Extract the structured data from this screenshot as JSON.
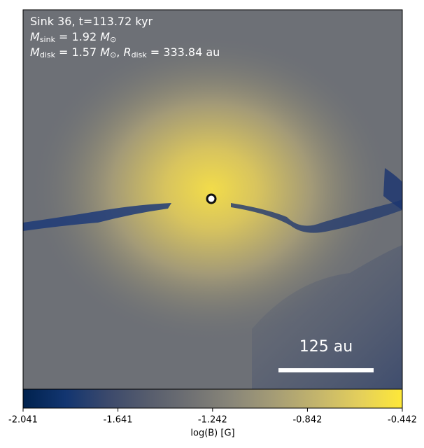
{
  "chart_data": {
    "type": "image",
    "annotation_lines": [
      [
        {
          "text": "Sink 36, t=113.72 kyr"
        }
      ],
      [
        {
          "text": "M",
          "italic": true
        },
        {
          "text": "sink",
          "sub": true
        },
        {
          "text": " = 1.92 "
        },
        {
          "text": "M",
          "italic": true
        },
        {
          "text": "⊙",
          "sub": true
        }
      ],
      [
        {
          "text": "M",
          "italic": true
        },
        {
          "text": "disk",
          "sub": true
        },
        {
          "text": " = 1.57 "
        },
        {
          "text": "M",
          "italic": true
        },
        {
          "text": "⊙",
          "sub": true
        },
        {
          "text": ", "
        },
        {
          "text": "R",
          "italic": true
        },
        {
          "text": "disk",
          "sub": true
        },
        {
          "text": " = 333.84 au"
        }
      ]
    ],
    "scale_bar_label": "125 au",
    "colorbar": {
      "label": "log(B) [G]",
      "xlim": [
        -2.041,
        -0.442
      ],
      "xticks": [
        -2.041,
        -1.641,
        -1.242,
        -0.842,
        -0.442
      ],
      "colormap": [
        "#00224e",
        "#123570",
        "#3b496c",
        "#575d6d",
        "#707173",
        "#8a8779",
        "#a69d75",
        "#c4b56c",
        "#e4cf5b",
        "#fee838"
      ]
    }
  }
}
